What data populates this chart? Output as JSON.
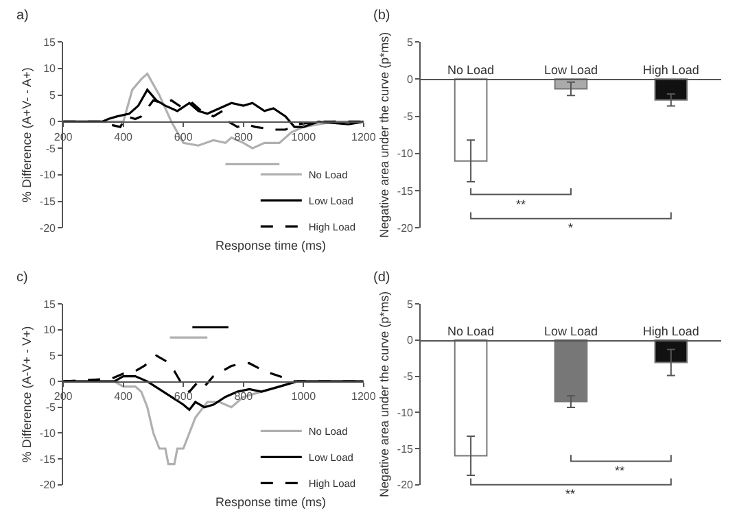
{
  "chart_data": [
    {
      "type": "line",
      "title": "a)",
      "xlabel": "Response time (ms)",
      "ylabel": "% Difference (A+V- - A+)",
      "xlim": [
        200,
        1200
      ],
      "xticks": [
        200,
        400,
        600,
        800,
        1000,
        1200
      ],
      "ylim": [
        -20,
        15
      ],
      "yticks": [
        -20,
        -15,
        -10,
        -5,
        0,
        5,
        10,
        15
      ],
      "marker": "none",
      "legend": "bottom right",
      "series": [
        {
          "name": "No Load",
          "color": "#b0b0b0",
          "line_style": "solid",
          "x": [
            200,
            330,
            400,
            430,
            460,
            480,
            500,
            520,
            560,
            600,
            650,
            700,
            740,
            760,
            800,
            830,
            870,
            920,
            960,
            1000,
            1100,
            1200
          ],
          "values": [
            0,
            0,
            0,
            6,
            8,
            9,
            7,
            5,
            0,
            -4,
            -4.5,
            -3.5,
            -4,
            -3,
            -4,
            -5,
            -4,
            -4,
            -2,
            -1,
            0,
            0
          ]
        },
        {
          "name": "Low Load",
          "color": "#000000",
          "line_style": "solid",
          "x": [
            200,
            330,
            350,
            380,
            420,
            450,
            480,
            510,
            540,
            580,
            620,
            650,
            680,
            720,
            760,
            800,
            830,
            870,
            900,
            940,
            970,
            1000,
            1050,
            1150,
            1200
          ],
          "values": [
            0,
            0,
            0.5,
            1,
            1.5,
            3,
            6,
            4,
            3,
            2,
            3.5,
            2,
            1.5,
            2.5,
            3.5,
            3,
            3.5,
            2,
            2.5,
            1,
            -1,
            -1,
            0,
            -0.5,
            0
          ]
        },
        {
          "name": "High Load",
          "color": "#000000",
          "line_style": "dashed",
          "x": [
            200,
            330,
            350,
            390,
            410,
            440,
            460,
            500,
            530,
            560,
            600,
            630,
            660,
            700,
            730,
            750,
            780,
            810,
            840,
            900,
            940,
            980,
            1050,
            1200
          ],
          "values": [
            0,
            0,
            -0.5,
            -1,
            1,
            0.5,
            1,
            4,
            3.5,
            4,
            2.5,
            3.5,
            2,
            1,
            2,
            0,
            -1,
            -0.5,
            -1,
            -1.5,
            -1.5,
            -0.5,
            0,
            0
          ]
        },
        {
          "color": "#b0b0b0",
          "line_style": "solid",
          "x": [
            740,
            920
          ],
          "values": [
            -8,
            -8
          ]
        }
      ]
    },
    {
      "type": "bar",
      "title": "(b)",
      "ylabel": "Negative area under the curve (p*ms)",
      "categories": [
        "No Load",
        "Low Load",
        "High Load"
      ],
      "values": [
        -11,
        -1.3,
        -2.8
      ],
      "errors": [
        2.8,
        0.9,
        0.8
      ],
      "colors": [
        "#ffffff",
        "#aaaaaa",
        "#111111"
      ],
      "ylim": [
        -20,
        5
      ],
      "yticks": [
        -20,
        -15,
        -10,
        -5,
        0,
        5
      ],
      "annotations": [
        "**",
        "*"
      ]
    },
    {
      "type": "line",
      "title": "c)",
      "xlabel": "Response time (ms)",
      "ylabel": "% Difference (A-V+ - V+)",
      "xlim": [
        200,
        1200
      ],
      "xticks": [
        200,
        400,
        600,
        800,
        1000,
        1200
      ],
      "ylim": [
        -20,
        15
      ],
      "yticks": [
        -20,
        -15,
        -10,
        -5,
        0,
        5,
        10,
        15
      ],
      "marker": "none",
      "legend": "bottom right",
      "series": [
        {
          "name": "No Load",
          "color": "#b0b0b0",
          "line_style": "solid",
          "x": [
            200,
            370,
            400,
            440,
            460,
            480,
            500,
            520,
            540,
            550,
            570,
            580,
            600,
            620,
            640,
            680,
            720,
            760,
            800,
            860,
            920,
            970,
            1200
          ],
          "values": [
            0,
            0,
            -1,
            -1,
            -2,
            -5,
            -10,
            -13,
            -13,
            -16,
            -16,
            -13,
            -13,
            -10,
            -7,
            -4,
            -4,
            -5,
            -3,
            -2,
            -1,
            0,
            0
          ]
        },
        {
          "name": "Low Load",
          "color": "#000000",
          "line_style": "solid",
          "x": [
            200,
            370,
            400,
            440,
            480,
            520,
            560,
            600,
            620,
            640,
            670,
            700,
            740,
            780,
            820,
            860,
            920,
            980,
            1200
          ],
          "values": [
            0,
            0,
            1,
            1,
            0,
            -1.5,
            -3,
            -4.5,
            -5.5,
            -4,
            -5,
            -4.5,
            -3,
            -2,
            -1.5,
            -2,
            -1,
            0,
            0
          ]
        },
        {
          "name": "High Load",
          "color": "#000000",
          "line_style": "dashed",
          "x": [
            200,
            360,
            400,
            440,
            470,
            510,
            540,
            570,
            600,
            620,
            650,
            670,
            700,
            760,
            800,
            820,
            870,
            920,
            970,
            1200
          ],
          "values": [
            0,
            0.5,
            1.5,
            2,
            3,
            5,
            4,
            2,
            -1,
            -2,
            0,
            -1,
            1,
            3,
            3.5,
            3.5,
            2,
            1,
            0,
            0
          ]
        },
        {
          "color": "#b0b0b0",
          "line_style": "solid",
          "x": [
            555,
            680
          ],
          "values": [
            8.5,
            8.5
          ]
        },
        {
          "color": "#000000",
          "line_style": "solid",
          "x": [
            630,
            750
          ],
          "values": [
            10.5,
            10.5
          ]
        }
      ]
    },
    {
      "type": "bar",
      "title": "(d)",
      "ylabel": "Negative area under the curve (p*ms)",
      "categories": [
        "No Load",
        "Low Load",
        "High Load"
      ],
      "values": [
        -16,
        -8.5,
        -3.1
      ],
      "errors": [
        2.7,
        0.8,
        1.8
      ],
      "colors": [
        "#ffffff",
        "#777777",
        "#111111"
      ],
      "ylim": [
        -20,
        5
      ],
      "yticks": [
        -20,
        -15,
        -10,
        -5,
        0,
        5
      ],
      "annotations": [
        "**",
        "**"
      ]
    }
  ]
}
